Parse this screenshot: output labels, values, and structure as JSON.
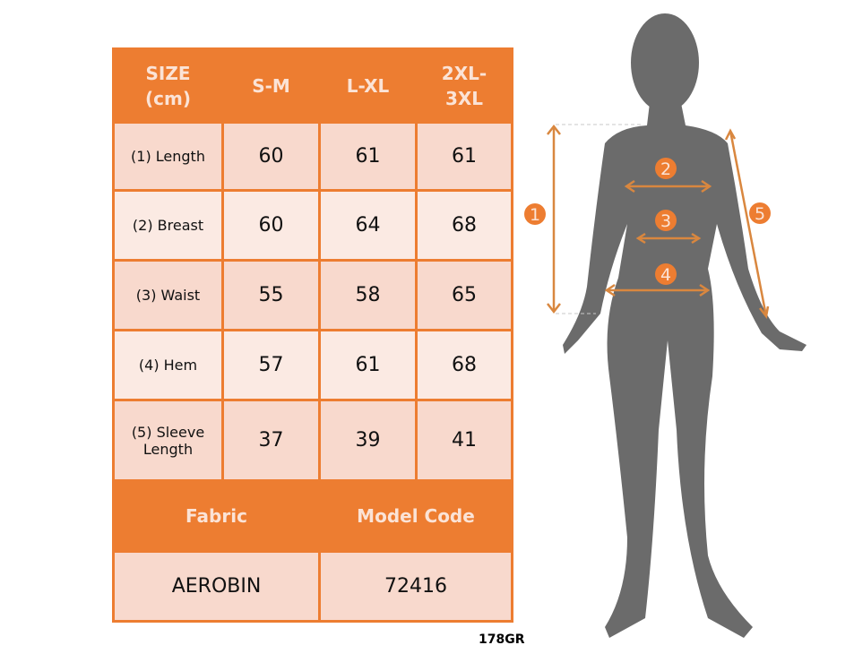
{
  "table": {
    "headers": [
      "SIZE\n(cm)",
      "S-M",
      "L-XL",
      "2XL-\n3XL"
    ],
    "header_lines": [
      [
        "SIZE",
        "(cm)"
      ],
      [
        "S-M"
      ],
      [
        "L-XL"
      ],
      [
        "2XL-",
        "3XL"
      ]
    ],
    "rows": [
      {
        "label": "(1) Length",
        "values": [
          "60",
          "61",
          "61"
        ]
      },
      {
        "label": "(2) Breast",
        "values": [
          "60",
          "64",
          "68"
        ]
      },
      {
        "label": "(3) Waist",
        "values": [
          "55",
          "58",
          "65"
        ]
      },
      {
        "label": "(4) Hem",
        "values": [
          "57",
          "61",
          "68"
        ]
      },
      {
        "label_lines": [
          "(5) Sleeve",
          "Length"
        ],
        "values": [
          "37",
          "39",
          "41"
        ]
      }
    ],
    "footer_headers": [
      "Fabric",
      "Model Code"
    ],
    "footer_values": [
      "AEROBIN",
      "72416"
    ]
  },
  "product_code": "178GR",
  "figure": {
    "markers": [
      "1",
      "2",
      "3",
      "4",
      "5"
    ],
    "colors": {
      "accent": "#ED7D31",
      "silhouette": "#6B6B6B",
      "cell_light": "#FBEAE3",
      "cell_dark": "#F8D9CD"
    }
  }
}
